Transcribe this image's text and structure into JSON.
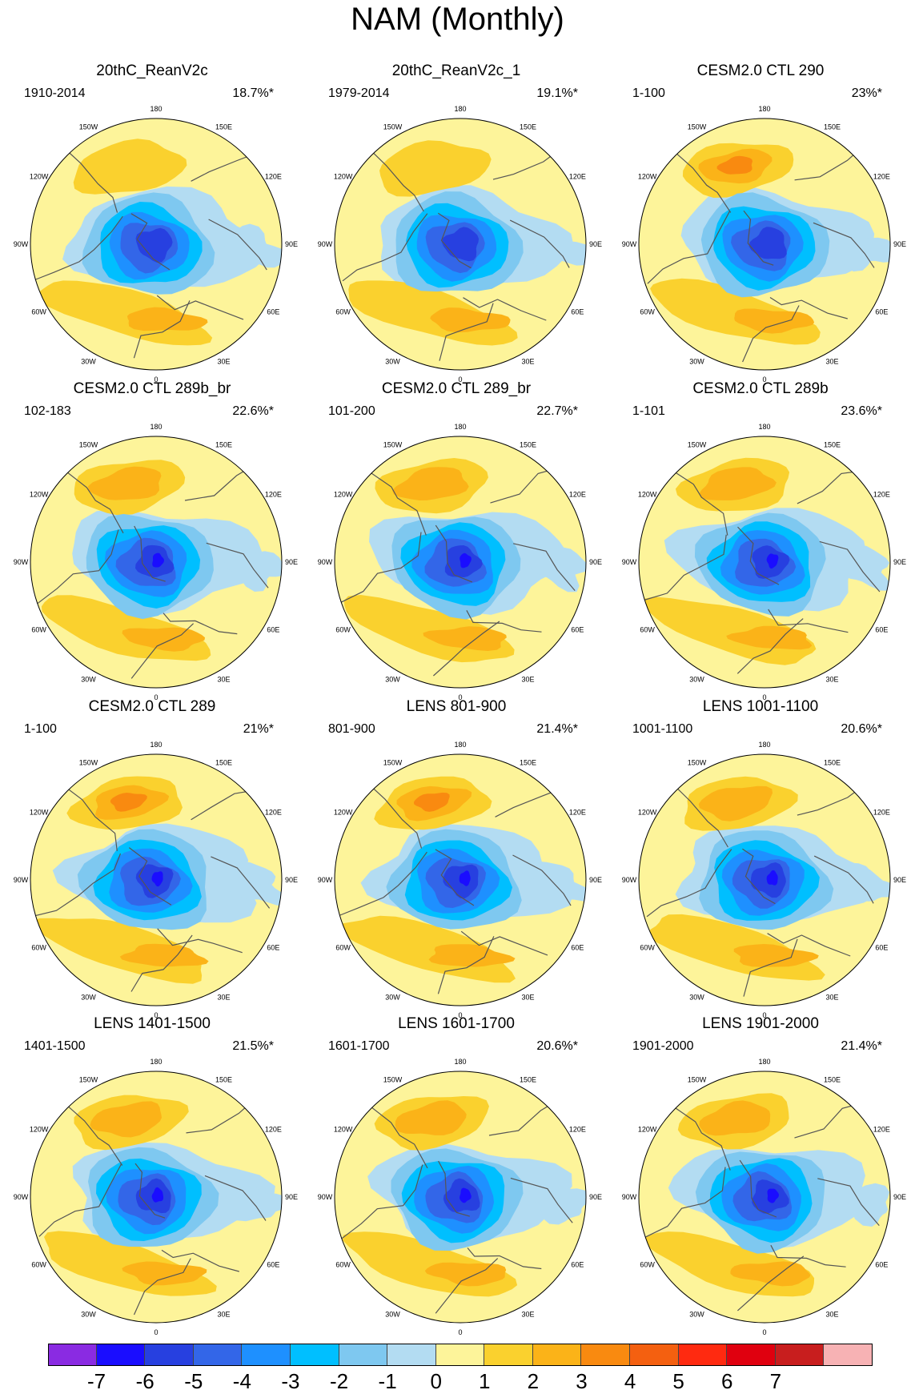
{
  "title": "NAM (Monthly)",
  "colors": {
    "land_outline": "#555555",
    "circle_outline": "#000000",
    "background_fill": "#fdf49a"
  },
  "lon_labels": [
    "180",
    "150E",
    "120E",
    "90E",
    "60E",
    "30E",
    "0",
    "30W",
    "60W",
    "90W",
    "120W",
    "150W"
  ],
  "panels": [
    {
      "title": "20thC_ReanV2c",
      "period": "1910-2014",
      "variance": "18.7%*"
    },
    {
      "title": "20thC_ReanV2c_1",
      "period": "1979-2014",
      "variance": "19.1%*"
    },
    {
      "title": "CESM2.0 CTL 290",
      "period": "1-100",
      "variance": "23%*"
    },
    {
      "title": "CESM2.0 CTL 289b_br",
      "period": "102-183",
      "variance": "22.6%*"
    },
    {
      "title": "CESM2.0 CTL 289_br",
      "period": "101-200",
      "variance": "22.7%*"
    },
    {
      "title": "CESM2.0 CTL 289b",
      "period": "1-101",
      "variance": "23.6%*"
    },
    {
      "title": "CESM2.0 CTL 289",
      "period": "1-100",
      "variance": "21%*"
    },
    {
      "title": "LENS 801-900",
      "period": "801-900",
      "variance": "21.4%*"
    },
    {
      "title": "LENS 1001-1100",
      "period": "1001-1100",
      "variance": "20.6%*"
    },
    {
      "title": "LENS 1401-1500",
      "period": "1401-1500",
      "variance": "21.5%*"
    },
    {
      "title": "LENS 1601-1700",
      "period": "1601-1700",
      "variance": "20.6%*"
    },
    {
      "title": "LENS 1901-2000",
      "period": "1901-2000",
      "variance": "21.4%*"
    }
  ],
  "colorbar": {
    "colors": [
      "#8a2be2",
      "#1a0dff",
      "#2740e0",
      "#3366e8",
      "#1e90ff",
      "#00bfff",
      "#7ec8f0",
      "#b3dcf2",
      "#fdf49a",
      "#fad12e",
      "#fbb318",
      "#f98a10",
      "#f46010",
      "#ff2a10",
      "#e0000f",
      "#c81e1e",
      "#f7b2b4"
    ],
    "ticks": [
      "-7",
      "-6",
      "-5",
      "-4",
      "-3",
      "-2",
      "-1",
      "0",
      "1",
      "2",
      "3",
      "4",
      "5",
      "6",
      "7"
    ]
  }
}
